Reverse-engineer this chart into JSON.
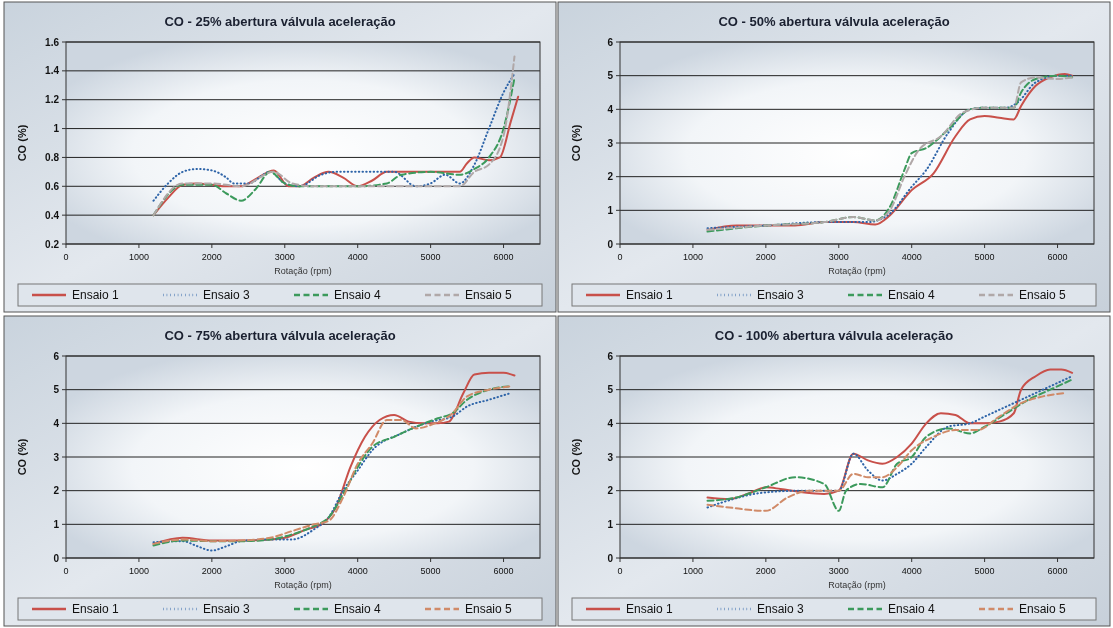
{
  "chart_data": [
    {
      "type": "line",
      "title": "CO - 25% abertura válvula aceleração",
      "xlabel": "Rotação (rpm)",
      "ylabel": "CO (%)",
      "xlim": [
        0,
        6500
      ],
      "xticks": [
        0,
        1000,
        2000,
        3000,
        4000,
        5000,
        6000
      ],
      "ylim": [
        0.2,
        1.6
      ],
      "yticks": [
        0.2,
        0.4,
        0.6,
        0.8,
        1,
        1.2,
        1.4,
        1.6
      ],
      "grid": "y",
      "legend": "bottom",
      "series": [
        {
          "name": "Ensaio 1",
          "color": "#c8504a",
          "line_style": "solid",
          "x": [
            1200,
            1400,
            1600,
            1800,
            2000,
            2200,
            2400,
            2600,
            2850,
            3050,
            3200,
            3400,
            3600,
            3800,
            4000,
            4200,
            4400,
            4800,
            5200,
            5400,
            5500,
            5600,
            5800,
            5950,
            6100,
            6200
          ],
          "values": [
            0.4,
            0.52,
            0.61,
            0.62,
            0.61,
            0.6,
            0.6,
            0.65,
            0.71,
            0.6,
            0.6,
            0.66,
            0.7,
            0.66,
            0.6,
            0.64,
            0.7,
            0.7,
            0.7,
            0.7,
            0.76,
            0.8,
            0.78,
            0.8,
            1.05,
            1.22
          ]
        },
        {
          "name": "Ensaio 3",
          "color": "#2e64a8",
          "line_style": "dotted",
          "x": [
            1200,
            1400,
            1600,
            1800,
            2000,
            2200,
            2300,
            2500,
            2800,
            3000,
            3200,
            3500,
            3700,
            4000,
            4500,
            4800,
            5000,
            5200,
            5400,
            5600,
            5800,
            6000,
            6150
          ],
          "values": [
            0.5,
            0.62,
            0.7,
            0.72,
            0.71,
            0.66,
            0.62,
            0.62,
            0.7,
            0.62,
            0.6,
            0.68,
            0.7,
            0.7,
            0.7,
            0.6,
            0.62,
            0.68,
            0.62,
            0.75,
            1.0,
            1.25,
            1.38
          ]
        },
        {
          "name": "Ensaio 4",
          "color": "#3c9a5c",
          "line_style": "dashed",
          "x": [
            1200,
            1600,
            2000,
            2200,
            2400,
            2600,
            2800,
            3000,
            3200,
            3500,
            4000,
            4400,
            4600,
            5000,
            5400,
            5600,
            5800,
            6000,
            6150
          ],
          "values": [
            0.4,
            0.61,
            0.61,
            0.55,
            0.5,
            0.58,
            0.7,
            0.62,
            0.6,
            0.6,
            0.6,
            0.62,
            0.68,
            0.7,
            0.68,
            0.72,
            0.8,
            1.0,
            1.35
          ]
        },
        {
          "name": "Ensaio 5",
          "color": "#b0a8a8",
          "line_style": "dashed",
          "x": [
            1200,
            1600,
            2000,
            2400,
            2850,
            3100,
            3400,
            4000,
            4500,
            5000,
            5400,
            5600,
            5800,
            6000,
            6150
          ],
          "values": [
            0.4,
            0.62,
            0.62,
            0.6,
            0.7,
            0.62,
            0.6,
            0.6,
            0.6,
            0.6,
            0.6,
            0.7,
            0.75,
            0.95,
            1.5
          ]
        }
      ]
    },
    {
      "type": "line",
      "title": "CO - 50% abertura válvula aceleração",
      "xlabel": "Rotação (rpm)",
      "ylabel": "CO (%)",
      "xlim": [
        0,
        6500
      ],
      "xticks": [
        0,
        1000,
        2000,
        3000,
        4000,
        5000,
        6000
      ],
      "ylim": [
        0,
        6
      ],
      "yticks": [
        0,
        1,
        2,
        3,
        4,
        5,
        6
      ],
      "grid": "y",
      "legend": "bottom",
      "series": [
        {
          "name": "Ensaio 1",
          "color": "#c8504a",
          "line_style": "solid",
          "x": [
            1200,
            1600,
            2000,
            2400,
            2800,
            3200,
            3500,
            3700,
            4000,
            4300,
            4600,
            4800,
            5000,
            5200,
            5400,
            5500,
            5700,
            5900,
            6100,
            6200
          ],
          "values": [
            0.42,
            0.55,
            0.55,
            0.55,
            0.65,
            0.65,
            0.58,
            0.85,
            1.6,
            2.1,
            3.2,
            3.7,
            3.8,
            3.75,
            3.7,
            4.1,
            4.7,
            4.95,
            5.05,
            5.0
          ]
        },
        {
          "name": "Ensaio 3",
          "color": "#2e64a8",
          "line_style": "dotted",
          "x": [
            1200,
            2000,
            2800,
            3200,
            3400,
            3700,
            4000,
            4200,
            4500,
            4800,
            5000,
            5300,
            5450,
            5700,
            6000,
            6200
          ],
          "values": [
            0.47,
            0.55,
            0.65,
            0.65,
            0.65,
            0.9,
            1.7,
            2.2,
            3.3,
            4.0,
            4.05,
            4.05,
            4.2,
            4.8,
            5.0,
            5.0
          ]
        },
        {
          "name": "Ensaio 4",
          "color": "#3c9a5c",
          "line_style": "dashed",
          "x": [
            1200,
            2000,
            2800,
            3200,
            3500,
            3700,
            3900,
            4000,
            4200,
            4500,
            4800,
            5000,
            5400,
            5500,
            5700,
            6000,
            6200
          ],
          "values": [
            0.37,
            0.55,
            0.65,
            0.8,
            0.7,
            1.1,
            2.2,
            2.7,
            2.85,
            3.4,
            4.0,
            4.05,
            4.05,
            4.5,
            4.9,
            5.0,
            4.95
          ]
        },
        {
          "name": "Ensaio 5",
          "color": "#b0a8a8",
          "line_style": "dashed",
          "x": [
            1200,
            2000,
            2800,
            3200,
            3500,
            3700,
            3900,
            4100,
            4400,
            4700,
            5000,
            5400,
            5500,
            5700,
            6000,
            6200
          ],
          "values": [
            0.42,
            0.55,
            0.65,
            0.8,
            0.7,
            1.0,
            2.0,
            2.8,
            3.2,
            3.9,
            4.05,
            4.05,
            4.8,
            4.95,
            4.9,
            4.95
          ]
        }
      ]
    },
    {
      "type": "line",
      "title": "CO - 75% abertura válvula aceleração",
      "xlabel": "Rotação (rpm)",
      "ylabel": "CO (%)",
      "xlim": [
        0,
        6500
      ],
      "xticks": [
        0,
        1000,
        2000,
        3000,
        4000,
        5000,
        6000
      ],
      "ylim": [
        0,
        6
      ],
      "yticks": [
        0,
        1,
        2,
        3,
        4,
        5,
        6
      ],
      "grid": "y",
      "legend": "bottom",
      "series": [
        {
          "name": "Ensaio 1",
          "color": "#c8504a",
          "line_style": "solid",
          "x": [
            1200,
            1600,
            2000,
            2400,
            2800,
            3000,
            3300,
            3500,
            3700,
            3900,
            4100,
            4300,
            4500,
            4700,
            4900,
            5100,
            5250,
            5450,
            5600,
            5800,
            6000,
            6150
          ],
          "values": [
            0.42,
            0.6,
            0.52,
            0.52,
            0.55,
            0.6,
            0.85,
            1.0,
            1.5,
            2.7,
            3.6,
            4.1,
            4.25,
            4.05,
            4.0,
            4.0,
            4.05,
            4.9,
            5.45,
            5.5,
            5.5,
            5.42
          ]
        },
        {
          "name": "Ensaio 3",
          "color": "#2e64a8",
          "line_style": "dotted",
          "x": [
            1200,
            1600,
            1800,
            2000,
            2200,
            2400,
            2800,
            3100,
            3400,
            3600,
            3800,
            4000,
            4200,
            4600,
            5000,
            5300,
            5500,
            5800,
            6100
          ],
          "values": [
            0.47,
            0.5,
            0.35,
            0.22,
            0.35,
            0.5,
            0.55,
            0.55,
            0.85,
            1.2,
            2.0,
            2.6,
            3.2,
            3.7,
            4.05,
            4.2,
            4.5,
            4.7,
            4.9
          ]
        },
        {
          "name": "Ensaio 4",
          "color": "#3c9a5c",
          "line_style": "dashed",
          "x": [
            1200,
            1600,
            2000,
            2400,
            2800,
            3100,
            3400,
            3600,
            3800,
            4000,
            4200,
            4500,
            4800,
            5100,
            5300,
            5500,
            5800,
            6100
          ],
          "values": [
            0.37,
            0.52,
            0.5,
            0.5,
            0.55,
            0.7,
            0.95,
            1.2,
            1.9,
            2.7,
            3.3,
            3.6,
            3.9,
            4.15,
            4.3,
            4.7,
            5.0,
            5.1
          ]
        },
        {
          "name": "Ensaio 5",
          "color": "#d08a68",
          "line_style": "dashed",
          "x": [
            1200,
            1600,
            2000,
            2400,
            2800,
            3100,
            3400,
            3600,
            3800,
            4000,
            4200,
            4400,
            4600,
            4800,
            5000,
            5300,
            5500,
            5800,
            6100
          ],
          "values": [
            0.42,
            0.55,
            0.5,
            0.52,
            0.6,
            0.8,
            1.0,
            1.1,
            1.8,
            2.8,
            3.4,
            4.1,
            4.1,
            3.85,
            3.95,
            4.3,
            4.8,
            5.0,
            5.1
          ]
        }
      ]
    },
    {
      "type": "line",
      "title": "CO - 100% abertura válvula aceleração",
      "xlabel": "Rotação (rpm)",
      "ylabel": "CO (%)",
      "xlim": [
        0,
        6500
      ],
      "xticks": [
        0,
        1000,
        2000,
        3000,
        4000,
        5000,
        6000
      ],
      "ylim": [
        0,
        6
      ],
      "yticks": [
        0,
        1,
        2,
        3,
        4,
        5,
        6
      ],
      "grid": "y",
      "legend": "bottom",
      "series": [
        {
          "name": "Ensaio 1",
          "color": "#c8504a",
          "line_style": "solid",
          "x": [
            1200,
            1500,
            1800,
            2000,
            2200,
            2500,
            2800,
            3000,
            3200,
            3400,
            3600,
            3800,
            4000,
            4200,
            4400,
            4600,
            4800,
            5000,
            5200,
            5400,
            5500,
            5700,
            5900,
            6050,
            6200
          ],
          "values": [
            1.8,
            1.75,
            1.95,
            2.1,
            2.05,
            1.95,
            1.9,
            2.0,
            3.1,
            2.9,
            2.8,
            3.0,
            3.4,
            4.0,
            4.3,
            4.25,
            4.0,
            4.0,
            4.05,
            4.3,
            5.0,
            5.4,
            5.6,
            5.6,
            5.5
          ]
        },
        {
          "name": "Ensaio 3",
          "color": "#2e64a8",
          "line_style": "dotted",
          "x": [
            1200,
            1400,
            2000,
            2500,
            3000,
            3200,
            3400,
            3600,
            3800,
            4000,
            4200,
            4500,
            4800,
            5000,
            5300,
            5600,
            5900,
            6200
          ],
          "values": [
            1.5,
            1.65,
            1.95,
            2.0,
            2.0,
            3.1,
            2.6,
            2.3,
            2.5,
            2.8,
            3.3,
            3.9,
            4.0,
            4.2,
            4.5,
            4.8,
            5.1,
            5.4
          ]
        },
        {
          "name": "Ensaio 4",
          "color": "#3c9a5c",
          "line_style": "dashed",
          "x": [
            1200,
            1600,
            2000,
            2400,
            2800,
            3000,
            3100,
            3300,
            3600,
            3800,
            4000,
            4200,
            4500,
            4800,
            5000,
            5300,
            5600,
            5900,
            6200
          ],
          "values": [
            1.7,
            1.8,
            2.1,
            2.4,
            2.2,
            1.4,
            2.0,
            2.2,
            2.1,
            2.8,
            3.0,
            3.6,
            3.85,
            3.7,
            3.9,
            4.3,
            4.7,
            5.0,
            5.3
          ]
        },
        {
          "name": "Ensaio 5",
          "color": "#d08a68",
          "line_style": "dashed",
          "x": [
            1200,
            1500,
            2000,
            2300,
            2600,
            3000,
            3200,
            3400,
            3600,
            3800,
            4000,
            4300,
            4600,
            4900,
            5200,
            5500,
            5800,
            6100
          ],
          "values": [
            1.58,
            1.5,
            1.4,
            1.8,
            2.0,
            2.0,
            2.5,
            2.4,
            2.4,
            2.7,
            3.2,
            3.6,
            3.8,
            3.8,
            4.2,
            4.6,
            4.8,
            4.9
          ]
        }
      ]
    }
  ]
}
